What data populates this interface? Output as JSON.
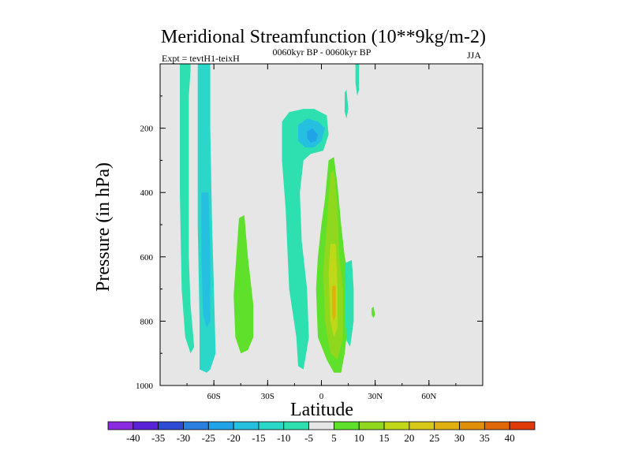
{
  "chart_data": {
    "type": "heatmap",
    "title": "Meridional Streamfunction (10**9kg/m-2)",
    "subtitle_left": "Expt = tevtH1-teixH",
    "subtitle_center": "0060kyr BP - 0060kyr BP",
    "subtitle_right": "JJA",
    "xlabel": "Latitude",
    "ylabel": "Pressure (in hPa)",
    "xlim": [
      -90,
      90
    ],
    "ylim": [
      0,
      1000
    ],
    "x_ticks": [
      {
        "value": -60,
        "label": "60S"
      },
      {
        "value": -30,
        "label": "30S"
      },
      {
        "value": 0,
        "label": "0"
      },
      {
        "value": 30,
        "label": "30N"
      },
      {
        "value": 60,
        "label": "60N"
      }
    ],
    "y_ticks": [
      {
        "value": 200,
        "label": "200"
      },
      {
        "value": 400,
        "label": "400"
      },
      {
        "value": 600,
        "label": "600"
      },
      {
        "value": 800,
        "label": "800"
      },
      {
        "value": 1000,
        "label": "1000"
      }
    ],
    "background_color": "#e6e6e6",
    "colorbar": {
      "colors": [
        "#8a2be2",
        "#5a22d8",
        "#2e4bd6",
        "#2a7fe0",
        "#21a3e8",
        "#25c0e0",
        "#2ad7c8",
        "#2ee0b0",
        "#e6e6e6",
        "#5fe02a",
        "#8fd81e",
        "#c0d818",
        "#d8c818",
        "#e0b010",
        "#e09008",
        "#e06808",
        "#e03a08"
      ],
      "labels": [
        "-40",
        "-35",
        "-30",
        "-25",
        "-20",
        "-15",
        "-10",
        "-5",
        "5",
        "10",
        "15",
        "20",
        "25",
        "30",
        "35",
        "40"
      ]
    },
    "regions": [
      {
        "name": "green-band-70s",
        "level": -5,
        "color": "#2ee0b0",
        "points": [
          [
            -79,
            0
          ],
          [
            -73,
            0
          ],
          [
            -73,
            20
          ],
          [
            -74,
            100
          ],
          [
            -74,
            300
          ],
          [
            -74,
            600
          ],
          [
            -73,
            750
          ],
          [
            -71,
            880
          ],
          [
            -73,
            900
          ],
          [
            -76,
            850
          ],
          [
            -78,
            700
          ],
          [
            -79,
            400
          ]
        ]
      },
      {
        "name": "cyan-band-65s",
        "level": -10,
        "color": "#2ad7c8",
        "points": [
          [
            -69,
            0
          ],
          [
            -62,
            0
          ],
          [
            -62,
            200
          ],
          [
            -61,
            500
          ],
          [
            -60,
            700
          ],
          [
            -59,
            900
          ],
          [
            -62,
            950
          ],
          [
            -64,
            960
          ],
          [
            -68,
            950
          ],
          [
            -68,
            800
          ],
          [
            -69,
            500
          ]
        ]
      },
      {
        "name": "blue-core-65s",
        "level": -15,
        "color": "#25c0e0",
        "points": [
          [
            -67,
            400
          ],
          [
            -63,
            400
          ],
          [
            -62,
            600
          ],
          [
            -62,
            800
          ],
          [
            -64,
            820
          ],
          [
            -66,
            780
          ],
          [
            -67,
            600
          ]
        ]
      },
      {
        "name": "green-blob-45s",
        "level": 5,
        "color": "#5fe02a",
        "points": [
          [
            -46,
            480
          ],
          [
            -43,
            470
          ],
          [
            -41,
            600
          ],
          [
            -38,
            750
          ],
          [
            -38,
            850
          ],
          [
            -41,
            890
          ],
          [
            -45,
            900
          ],
          [
            -48,
            850
          ],
          [
            -49,
            720
          ],
          [
            -47,
            560
          ]
        ]
      },
      {
        "name": "cyan-region-10s",
        "level": -5,
        "color": "#2ee0b0",
        "points": [
          [
            -22,
            180
          ],
          [
            -18,
            150
          ],
          [
            -10,
            140
          ],
          [
            -4,
            140
          ],
          [
            3,
            160
          ],
          [
            4,
            220
          ],
          [
            1,
            270
          ],
          [
            -6,
            280
          ],
          [
            -10,
            300
          ],
          [
            -12,
            400
          ],
          [
            -11,
            550
          ],
          [
            -8,
            700
          ],
          [
            -7,
            850
          ],
          [
            -10,
            950
          ],
          [
            -13,
            940
          ],
          [
            -14,
            850
          ],
          [
            -18,
            700
          ],
          [
            -20,
            450
          ],
          [
            -22,
            300
          ]
        ]
      },
      {
        "name": "blue-core-10s",
        "level": -15,
        "color": "#25c0e0",
        "points": [
          [
            -13,
            190
          ],
          [
            -8,
            170
          ],
          [
            -2,
            180
          ],
          [
            2,
            200
          ],
          [
            0,
            240
          ],
          [
            -4,
            260
          ],
          [
            -9,
            260
          ],
          [
            -13,
            240
          ]
        ]
      },
      {
        "name": "blue-inner-10s",
        "level": -20,
        "color": "#21a3e8",
        "points": [
          [
            -8,
            210
          ],
          [
            -5,
            200
          ],
          [
            -2,
            220
          ],
          [
            -3,
            240
          ],
          [
            -6,
            245
          ],
          [
            -8,
            230
          ]
        ]
      },
      {
        "name": "green-region-eq",
        "level": 5,
        "color": "#5fe02a",
        "points": [
          [
            4,
            300
          ],
          [
            7,
            290
          ],
          [
            9,
            380
          ],
          [
            11,
            500
          ],
          [
            13,
            600
          ],
          [
            15,
            650
          ],
          [
            15,
            800
          ],
          [
            13,
            900
          ],
          [
            11,
            960
          ],
          [
            7,
            960
          ],
          [
            3,
            920
          ],
          [
            -2,
            850
          ],
          [
            -3,
            700
          ],
          [
            -2,
            600
          ],
          [
            0,
            500
          ],
          [
            2,
            420
          ]
        ]
      },
      {
        "name": "yellowgreen-core-eq",
        "level": 10,
        "color": "#8fd81e",
        "points": [
          [
            5,
            340
          ],
          [
            7,
            330
          ],
          [
            9,
            450
          ],
          [
            10,
            600
          ],
          [
            12,
            700
          ],
          [
            12,
            850
          ],
          [
            9,
            920
          ],
          [
            5,
            900
          ],
          [
            2,
            800
          ],
          [
            1,
            650
          ],
          [
            3,
            500
          ]
        ]
      },
      {
        "name": "yellow-core-eq",
        "level": 15,
        "color": "#c0d818",
        "points": [
          [
            5,
            560
          ],
          [
            8,
            560
          ],
          [
            9,
            700
          ],
          [
            9,
            820
          ],
          [
            7,
            850
          ],
          [
            5,
            800
          ],
          [
            4,
            650
          ]
        ]
      },
      {
        "name": "orange-core-eq",
        "level": 20,
        "color": "#e0b010",
        "points": [
          [
            6,
            690
          ],
          [
            8,
            690
          ],
          [
            8,
            780
          ],
          [
            7,
            800
          ],
          [
            6,
            780
          ]
        ]
      },
      {
        "name": "cyan-strip-15n",
        "level": -5,
        "color": "#2ee0b0",
        "points": [
          [
            13,
            620
          ],
          [
            17,
            610
          ],
          [
            18,
            700
          ],
          [
            18,
            800
          ],
          [
            16,
            880
          ],
          [
            14,
            860
          ],
          [
            13,
            760
          ]
        ]
      },
      {
        "name": "cyan-strip-top-20n",
        "level": -5,
        "color": "#2ee0b0",
        "points": [
          [
            19,
            0
          ],
          [
            21,
            0
          ],
          [
            21,
            80
          ],
          [
            20,
            100
          ],
          [
            19,
            60
          ]
        ]
      },
      {
        "name": "green-dot-25n",
        "level": 5,
        "color": "#5fe02a",
        "points": [
          [
            28,
            760
          ],
          [
            29,
            755
          ],
          [
            30,
            780
          ],
          [
            29,
            790
          ],
          [
            28,
            780
          ]
        ]
      },
      {
        "name": "cyan-strip-eq-top",
        "level": -5,
        "color": "#2ee0b0",
        "points": [
          [
            13,
            90
          ],
          [
            14,
            80
          ],
          [
            15,
            140
          ],
          [
            14,
            170
          ],
          [
            13,
            150
          ]
        ]
      }
    ]
  }
}
